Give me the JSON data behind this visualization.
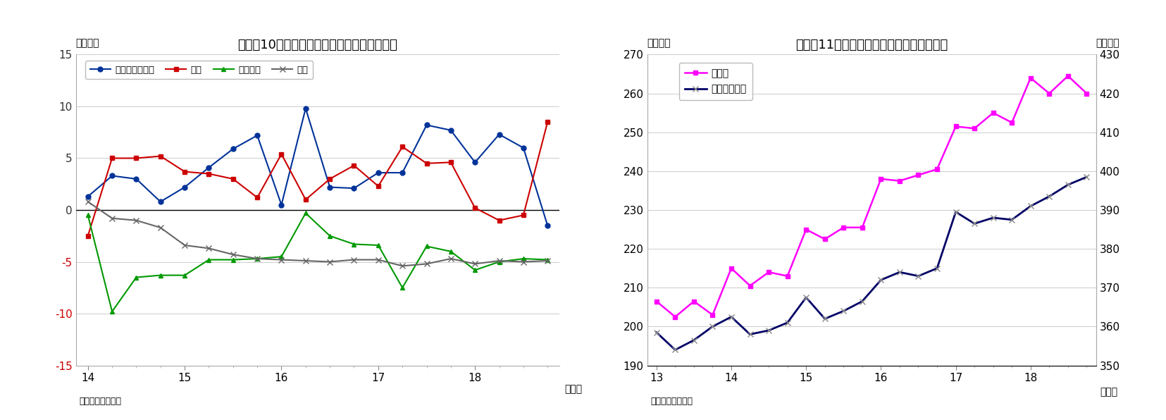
{
  "chart10": {
    "title": "（図表10）部門別資金過不足（季節調整値）",
    "ylabel_left": "（兆円）",
    "xlabel": "（年）",
    "source": "（資料）日本銀行",
    "ylim": [
      -15,
      15
    ],
    "yticks": [
      -15,
      -10,
      -5,
      0,
      5,
      10,
      15
    ],
    "year_labels": [
      "14",
      "15",
      "16",
      "17",
      "18"
    ],
    "minkan": [
      1.3,
      3.3,
      3.0,
      0.8,
      2.2,
      4.1,
      5.9,
      7.2,
      0.5,
      9.8,
      2.2,
      2.1,
      3.6,
      3.6,
      8.2,
      7.7,
      4.6,
      7.3,
      6.0,
      -1.5
    ],
    "kakei": [
      -2.5,
      5.0,
      5.0,
      5.2,
      3.7,
      3.5,
      3.0,
      1.2,
      5.4,
      1.0,
      3.0,
      4.3,
      2.3,
      6.1,
      4.5,
      4.6,
      0.2,
      -1.0,
      -0.5,
      8.5
    ],
    "ippan": [
      -0.5,
      -9.8,
      -6.5,
      -6.3,
      -6.3,
      -4.8,
      -4.8,
      -4.7,
      -4.5,
      -0.3,
      -2.5,
      -3.3,
      -3.4,
      -7.5,
      -3.5,
      -4.0,
      -5.8,
      -5.0,
      -4.7,
      -4.8
    ],
    "kaigai": [
      0.8,
      -0.8,
      -1.0,
      -1.7,
      -3.4,
      -3.7,
      -4.3,
      -4.7,
      -4.8,
      -4.9,
      -5.0,
      -4.8,
      -4.8,
      -5.4,
      -5.2,
      -4.7,
      -5.2,
      -4.9,
      -5.0,
      -4.9
    ],
    "minkan_color": "#003399",
    "kakei_color": "#cc0000",
    "ippan_color": "#009900",
    "kaigai_color": "#666666",
    "minkan_label": "民間非金融法人",
    "kakei_label": "家計",
    "ippan_label": "一般政府",
    "kaigai_label": "海外",
    "neg_tick_color": "#cc0000",
    "pos_tick_color": "#333333",
    "zero_tick_color": "#333333",
    "grid_color": "#cccccc",
    "bg_color": "#ffffff"
  },
  "chart11": {
    "title": "（図表11）民間非金融法人の現預金・借入",
    "ylabel_left": "（兆円）",
    "ylabel_right": "（兆円）",
    "xlabel": "（年）",
    "source": "（資料）日本銀行",
    "ylim_left": [
      190,
      270
    ],
    "ylim_right": [
      350,
      430
    ],
    "yticks_left": [
      190,
      200,
      210,
      220,
      230,
      240,
      250,
      260,
      270
    ],
    "yticks_right": [
      350,
      360,
      370,
      380,
      390,
      400,
      410,
      420,
      430
    ],
    "year_labels": [
      "13",
      "14",
      "15",
      "16",
      "17",
      "18"
    ],
    "genyo": [
      206.5,
      202.5,
      206.5,
      203.0,
      215.0,
      210.5,
      214.0,
      213.0,
      225.0,
      222.5,
      225.5,
      225.5,
      238.0,
      237.5,
      239.0,
      240.5,
      251.5,
      251.0,
      255.0,
      252.5,
      264.0,
      260.0,
      264.5,
      260.0
    ],
    "kariire": [
      358.5,
      354.0,
      356.5,
      360.0,
      362.5,
      358.0,
      359.0,
      361.0,
      367.5,
      362.0,
      364.0,
      366.5,
      372.0,
      374.0,
      373.0,
      375.0,
      389.5,
      386.5,
      388.0,
      387.5,
      391.0,
      393.5,
      396.5,
      398.5
    ],
    "genyo_color": "#ff00ff",
    "kariire_color": "#000066",
    "genyo_label": "現預金",
    "kariire_label": "借入（右軸）",
    "grid_color": "#cccccc",
    "bg_color": "#ffffff"
  }
}
